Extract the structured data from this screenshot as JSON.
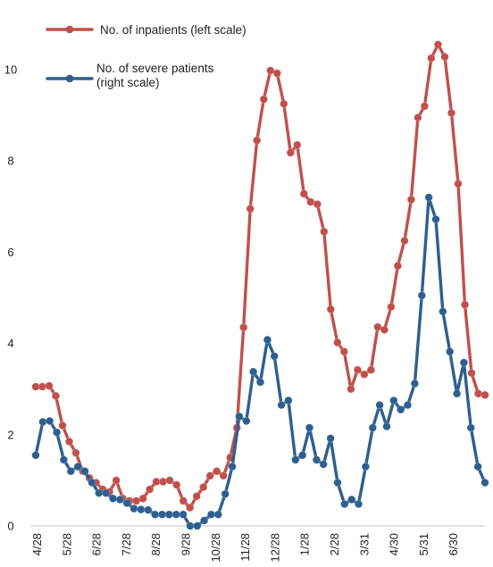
{
  "chart_data": {
    "type": "line",
    "title": "",
    "xlabel": "",
    "ylabel": "",
    "ylim": [
      0,
      10
    ],
    "yticks": [
      "0",
      "2",
      "4",
      "6",
      "8",
      "10"
    ],
    "x_tick_labels": [
      "4/28",
      "5/28",
      "6/28",
      "7/28",
      "8/28",
      "9/28",
      "10/28",
      "11/28",
      "12/28",
      "1/28",
      "2/28",
      "3/31",
      "4/30",
      "5/31",
      "6/30"
    ],
    "legend": {
      "placement": "top-left",
      "entries": [
        {
          "lines": [
            "No. of inpatients (left scale)"
          ],
          "series_index": 0
        },
        {
          "lines": [
            "No. of severe patients",
            "(right scale)"
          ],
          "series_index": 1
        }
      ]
    },
    "series": [
      {
        "name": "No. of inpatients (left scale)",
        "axis": "left",
        "color": "#C0504D",
        "values": [
          3.05,
          3.05,
          3.07,
          2.85,
          2.2,
          1.85,
          1.6,
          1.2,
          1.05,
          0.95,
          0.8,
          0.75,
          1.0,
          0.6,
          0.55,
          0.55,
          0.6,
          0.8,
          0.97,
          0.97,
          1.0,
          0.9,
          0.55,
          0.4,
          0.65,
          0.85,
          1.1,
          1.2,
          1.1,
          1.5,
          2.15,
          4.35,
          6.95,
          8.45,
          9.35,
          9.98,
          9.92,
          9.25,
          8.18,
          8.35,
          7.28,
          7.1,
          7.05,
          6.45,
          4.75,
          4.02,
          3.82,
          3.0,
          3.42,
          3.32,
          3.42,
          4.36,
          4.3,
          4.8,
          5.7,
          6.25,
          7.15,
          8.95,
          9.2,
          10.25,
          10.55,
          10.28,
          9.05,
          7.5,
          4.85,
          3.35,
          2.9,
          2.87
        ]
      },
      {
        "name": "No. of severe patients (right scale)",
        "axis": "right",
        "color": "#2E5F8E",
        "values": [
          1.55,
          2.28,
          2.3,
          2.05,
          1.45,
          1.2,
          1.3,
          1.2,
          0.95,
          0.72,
          0.72,
          0.6,
          0.58,
          0.5,
          0.38,
          0.36,
          0.35,
          0.25,
          0.25,
          0.25,
          0.25,
          0.25,
          0.0,
          0.0,
          0.12,
          0.25,
          0.25,
          0.7,
          1.3,
          2.4,
          2.3,
          3.38,
          3.15,
          4.08,
          3.72,
          2.65,
          2.75,
          1.45,
          1.55,
          2.15,
          1.45,
          1.35,
          1.92,
          0.95,
          0.48,
          0.58,
          0.48,
          1.3,
          2.15,
          2.65,
          2.18,
          2.75,
          2.55,
          2.65,
          3.12,
          5.05,
          7.2,
          6.72,
          4.7,
          3.82,
          2.9,
          3.58,
          2.15,
          1.3,
          0.95
        ]
      }
    ]
  }
}
